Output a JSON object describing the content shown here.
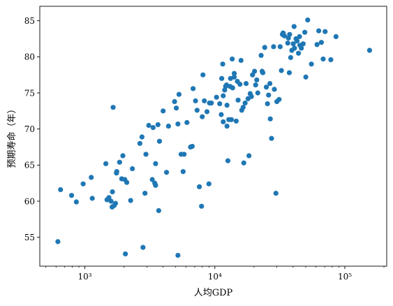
{
  "chart_data": {
    "type": "scatter",
    "xlabel": "人均GDP",
    "ylabel": "预期寿命（年）",
    "x_scale": "log",
    "xlim": [
      450,
      210000
    ],
    "ylim": [
      51,
      87
    ],
    "x_major_ticks": [
      1000,
      10000,
      100000
    ],
    "x_major_tick_labels": [
      "10³",
      "10⁴",
      "10⁵"
    ],
    "y_ticks": [
      55,
      60,
      65,
      70,
      75,
      80,
      85
    ],
    "y_tick_labels": [
      "55",
      "60",
      "65",
      "70",
      "75",
      "80",
      "85"
    ],
    "grid": false,
    "marker_color": "#1f77b4",
    "points": [
      [
        620,
        54.4
      ],
      [
        650,
        61.6
      ],
      [
        790,
        60.8
      ],
      [
        860,
        59.9
      ],
      [
        970,
        62.4
      ],
      [
        1120,
        63.3
      ],
      [
        1140,
        60.4
      ],
      [
        1450,
        65.2
      ],
      [
        1480,
        60.2
      ],
      [
        1530,
        60.5
      ],
      [
        1590,
        60.0
      ],
      [
        1620,
        59.2
      ],
      [
        1630,
        61.3
      ],
      [
        1650,
        73.0
      ],
      [
        1680,
        59.4
      ],
      [
        1720,
        59.7
      ],
      [
        1750,
        63.9
      ],
      [
        1760,
        64.1
      ],
      [
        1850,
        65.4
      ],
      [
        1920,
        63.1
      ],
      [
        1960,
        66.3
      ],
      [
        2030,
        63.0
      ],
      [
        2050,
        52.7
      ],
      [
        2100,
        62.6
      ],
      [
        2250,
        60.1
      ],
      [
        2320,
        64.5
      ],
      [
        2650,
        68.0
      ],
      [
        2750,
        68.9
      ],
      [
        2800,
        53.6
      ],
      [
        2900,
        61.1
      ],
      [
        2950,
        66.5
      ],
      [
        3100,
        70.5
      ],
      [
        3300,
        63.0
      ],
      [
        3350,
        70.2
      ],
      [
        3450,
        62.5
      ],
      [
        3500,
        65.2
      ],
      [
        3500,
        62.2
      ],
      [
        3650,
        70.6
      ],
      [
        3700,
        58.7
      ],
      [
        3750,
        68.3
      ],
      [
        4000,
        72.5
      ],
      [
        4250,
        64.0
      ],
      [
        4400,
        70.4
      ],
      [
        4900,
        73.8
      ],
      [
        5050,
        72.9
      ],
      [
        5200,
        70.7
      ],
      [
        5200,
        52.5
      ],
      [
        5300,
        74.8
      ],
      [
        5500,
        66.5
      ],
      [
        5700,
        64.1
      ],
      [
        5800,
        66.5
      ],
      [
        6100,
        70.9
      ],
      [
        6500,
        67.5
      ],
      [
        6700,
        67.6
      ],
      [
        6800,
        75.6
      ],
      [
        7100,
        73.9
      ],
      [
        7300,
        72.6
      ],
      [
        7600,
        62.0
      ],
      [
        7900,
        59.3
      ],
      [
        8000,
        71.7
      ],
      [
        8100,
        77.5
      ],
      [
        8300,
        73.9
      ],
      [
        8700,
        72.4
      ],
      [
        9000,
        62.4
      ],
      [
        9100,
        73.6
      ],
      [
        9400,
        73.6
      ],
      [
        10300,
        74.4
      ],
      [
        10900,
        73.5
      ],
      [
        11200,
        72.0
      ],
      [
        11300,
        77.0
      ],
      [
        11500,
        79.0
      ],
      [
        11600,
        74.6
      ],
      [
        11600,
        71.0
      ],
      [
        11900,
        75.4
      ],
      [
        12100,
        75.9
      ],
      [
        12300,
        76.1
      ],
      [
        12400,
        70.4
      ],
      [
        12400,
        73.3
      ],
      [
        12600,
        65.6
      ],
      [
        12800,
        71.3
      ],
      [
        13100,
        75.9
      ],
      [
        13200,
        77.0
      ],
      [
        13400,
        71.3
      ],
      [
        13600,
        79.7
      ],
      [
        13700,
        75.7
      ],
      [
        14100,
        77.7
      ],
      [
        14100,
        77.2
      ],
      [
        14600,
        71.1
      ],
      [
        14900,
        76.6
      ],
      [
        15100,
        74.0
      ],
      [
        15600,
        76.2
      ],
      [
        15900,
        79.5
      ],
      [
        16100,
        72.6
      ],
      [
        16500,
        73.0
      ],
      [
        16700,
        65.3
      ],
      [
        17100,
        73.6
      ],
      [
        17400,
        76.3
      ],
      [
        18000,
        74.2
      ],
      [
        18300,
        66.3
      ],
      [
        18700,
        74.9
      ],
      [
        19100,
        74.5
      ],
      [
        19500,
        77.5
      ],
      [
        20200,
        78.0
      ],
      [
        20600,
        76.1
      ],
      [
        21000,
        76.8
      ],
      [
        21400,
        75.0
      ],
      [
        22700,
        80.2
      ],
      [
        23100,
        78.0
      ],
      [
        23400,
        77.8
      ],
      [
        24200,
        81.3
      ],
      [
        24900,
        75.8
      ],
      [
        25400,
        73.5
      ],
      [
        25900,
        74.7
      ],
      [
        26500,
        76.3
      ],
      [
        26700,
        71.4
      ],
      [
        27300,
        68.7
      ],
      [
        28300,
        81.4
      ],
      [
        28700,
        75.5
      ],
      [
        29500,
        61.1
      ],
      [
        30000,
        73.8
      ],
      [
        31200,
        74.1
      ],
      [
        31800,
        81.4
      ],
      [
        32500,
        78.1
      ],
      [
        33100,
        83.1
      ],
      [
        33500,
        83.3
      ],
      [
        34300,
        82.9
      ],
      [
        36400,
        81.9
      ],
      [
        36800,
        82.6
      ],
      [
        37400,
        77.8
      ],
      [
        37600,
        83.1
      ],
      [
        38300,
        79.9
      ],
      [
        39100,
        80.9
      ],
      [
        40100,
        81.8
      ],
      [
        40700,
        84.2
      ],
      [
        41000,
        81.2
      ],
      [
        42100,
        82.5
      ],
      [
        42900,
        82.2
      ],
      [
        44000,
        80.5
      ],
      [
        44800,
        82.8
      ],
      [
        45100,
        81.6
      ],
      [
        46300,
        81.2
      ],
      [
        47800,
        81.8
      ],
      [
        49200,
        83.4
      ],
      [
        50100,
        77.2
      ],
      [
        51800,
        85.1
      ],
      [
        55300,
        79.0
      ],
      [
        61100,
        81.7
      ],
      [
        63000,
        83.6
      ],
      [
        66000,
        82.0
      ],
      [
        68100,
        79.7
      ],
      [
        70500,
        83.5
      ],
      [
        78000,
        79.6
      ],
      [
        85500,
        82.8
      ],
      [
        155000,
        80.9
      ]
    ]
  }
}
